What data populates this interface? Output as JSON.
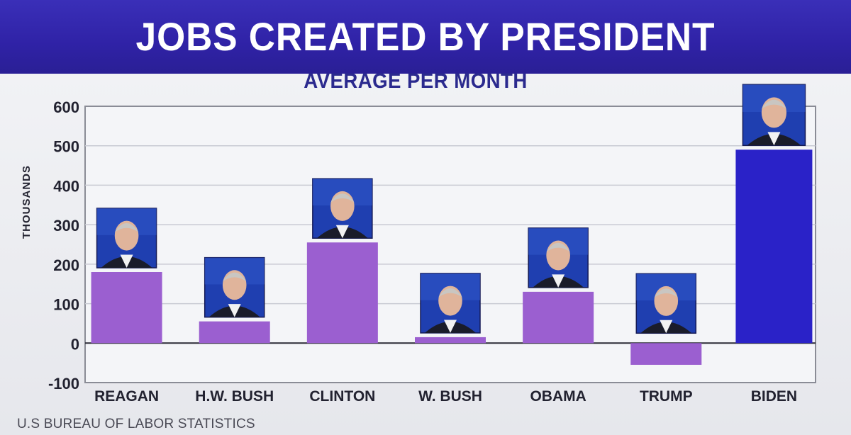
{
  "header": {
    "title": "JOBS CREATED BY PRESIDENT"
  },
  "source": "U.S BUREAU OF LABOR STATISTICS",
  "colors": {
    "title_bg": "#2f22a6",
    "bar": "#9b5fd0",
    "highlight_bar": "#2a22c8",
    "photo_bg": "#1f3fb0"
  },
  "chart_data": {
    "type": "bar",
    "title": "AVERAGE PER MONTH",
    "ylabel": "THOUSANDS",
    "xlabel": "",
    "ylim": [
      -100,
      600
    ],
    "yticks": [
      600,
      500,
      400,
      300,
      200,
      100,
      0,
      -100
    ],
    "grid": true,
    "categories": [
      "REAGAN",
      "H.W. BUSH",
      "CLINTON",
      "W. BUSH",
      "OBAMA",
      "TRUMP",
      "BIDEN"
    ],
    "values": [
      180,
      55,
      255,
      15,
      130,
      -55,
      490
    ],
    "highlight": "BIDEN"
  }
}
